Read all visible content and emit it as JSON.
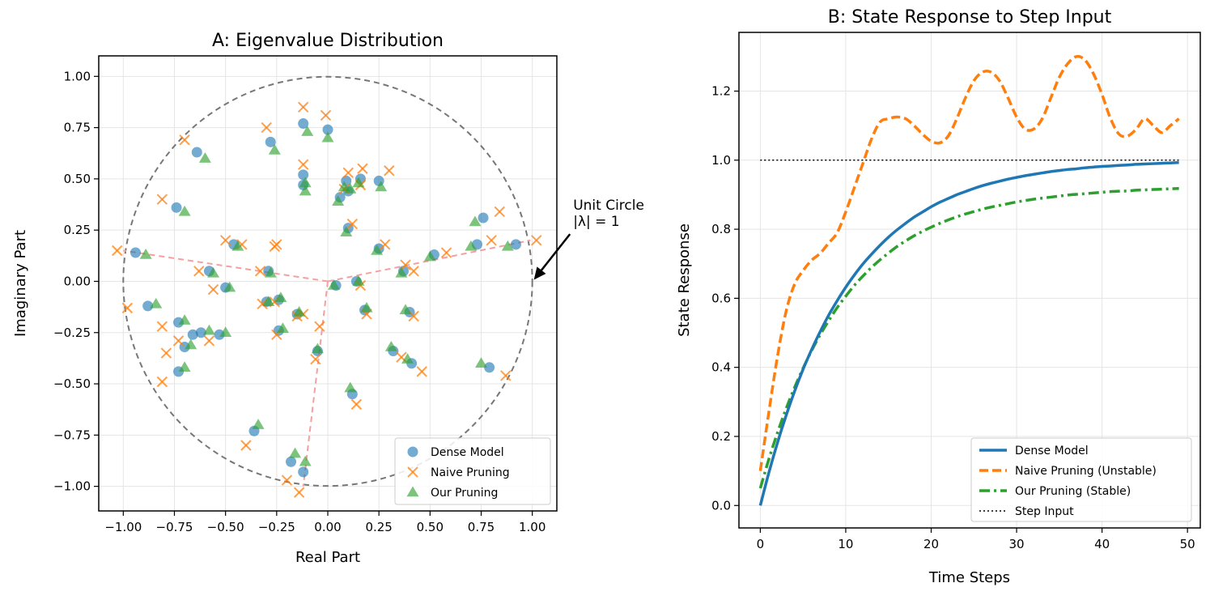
{
  "colors": {
    "dense": "#1f77b4",
    "naive": "#ff7f0e",
    "ours": "#2ca02c",
    "grid": "#e5e5e5",
    "circle": "#777777",
    "spoke": "#f4a0a0"
  },
  "chart_data": [
    {
      "type": "scatter",
      "title": "A: Eigenvalue Distribution",
      "xlabel": "Real Part",
      "ylabel": "Imaginary Part",
      "xlim": [
        -1.12,
        1.12
      ],
      "ylim": [
        -1.12,
        1.1
      ],
      "xticks": [
        -1.0,
        -0.75,
        -0.5,
        -0.25,
        0.0,
        0.25,
        0.5,
        0.75,
        1.0
      ],
      "xtick_labels": [
        "−1.00",
        "−0.75",
        "−0.50",
        "−0.25",
        "0.00",
        "0.25",
        "0.50",
        "0.75",
        "1.00"
      ],
      "yticks": [
        1.0,
        0.75,
        0.5,
        0.25,
        0.0,
        -0.25,
        -0.5,
        -0.75,
        -1.0
      ],
      "ytick_labels": [
        "1.00",
        "0.75",
        "0.50",
        "0.25",
        "0.00",
        "−0.25",
        "−0.50",
        "−0.75",
        "−1.00"
      ],
      "grid": true,
      "legend_position": "lower-right",
      "unit_circle_radius": 1,
      "spokes": [
        [
          -1.0,
          0.15
        ],
        [
          0.99,
          0.2
        ],
        [
          -0.12,
          -1.0
        ]
      ],
      "annotation": {
        "line1": "Unit Circle",
        "line2": "|λ| = 1",
        "target": [
          1.0,
          0.0
        ],
        "text_at": [
          1.2,
          0.27
        ]
      },
      "series": [
        {
          "name": "Dense Model",
          "marker": "circle",
          "points": [
            [
              -0.94,
              0.14
            ],
            [
              -0.74,
              0.36
            ],
            [
              -0.64,
              0.63
            ],
            [
              -0.58,
              0.05
            ],
            [
              -0.5,
              -0.03
            ],
            [
              -0.46,
              0.18
            ],
            [
              -0.29,
              0.05
            ],
            [
              -0.3,
              -0.1
            ],
            [
              -0.24,
              -0.09
            ],
            [
              -0.24,
              -0.24
            ],
            [
              -0.28,
              0.68
            ],
            [
              -0.12,
              0.77
            ],
            [
              -0.12,
              0.52
            ],
            [
              -0.12,
              0.47
            ],
            [
              -0.15,
              -0.16
            ],
            [
              -0.05,
              -0.34
            ],
            [
              0.0,
              0.74
            ],
            [
              0.06,
              0.41
            ],
            [
              0.09,
              0.49
            ],
            [
              0.1,
              0.26
            ],
            [
              0.1,
              0.44
            ],
            [
              0.16,
              0.5
            ],
            [
              0.25,
              0.49
            ],
            [
              0.25,
              0.16
            ],
            [
              0.14,
              0.0
            ],
            [
              0.18,
              -0.14
            ],
            [
              0.04,
              -0.02
            ],
            [
              0.37,
              0.05
            ],
            [
              0.4,
              -0.15
            ],
            [
              0.41,
              -0.4
            ],
            [
              0.52,
              0.13
            ],
            [
              0.32,
              -0.34
            ],
            [
              0.76,
              0.31
            ],
            [
              0.73,
              0.18
            ],
            [
              0.92,
              0.18
            ],
            [
              0.79,
              -0.42
            ],
            [
              -0.88,
              -0.12
            ],
            [
              -0.73,
              -0.2
            ],
            [
              -0.73,
              -0.44
            ],
            [
              -0.7,
              -0.32
            ],
            [
              -0.62,
              -0.25
            ],
            [
              -0.53,
              -0.26
            ],
            [
              -0.66,
              -0.26
            ],
            [
              0.12,
              -0.55
            ],
            [
              -0.36,
              -0.73
            ],
            [
              -0.18,
              -0.88
            ],
            [
              -0.12,
              -0.93
            ]
          ]
        },
        {
          "name": "Naive Pruning",
          "marker": "x",
          "points": [
            [
              -1.03,
              0.15
            ],
            [
              -0.98,
              -0.13
            ],
            [
              -0.81,
              0.4
            ],
            [
              -0.7,
              0.69
            ],
            [
              -0.81,
              -0.22
            ],
            [
              -0.79,
              -0.35
            ],
            [
              -0.81,
              -0.49
            ],
            [
              -0.73,
              -0.29
            ],
            [
              -0.63,
              0.05
            ],
            [
              -0.56,
              -0.04
            ],
            [
              -0.58,
              -0.29
            ],
            [
              -0.5,
              0.2
            ],
            [
              -0.42,
              0.18
            ],
            [
              -0.33,
              0.05
            ],
            [
              -0.32,
              -0.11
            ],
            [
              -0.3,
              0.75
            ],
            [
              -0.25,
              0.18
            ],
            [
              -0.26,
              0.17
            ],
            [
              -0.25,
              -0.26
            ],
            [
              -0.26,
              -0.1
            ],
            [
              -0.15,
              -0.17
            ],
            [
              -0.12,
              -0.16
            ],
            [
              -0.12,
              0.57
            ],
            [
              -0.12,
              0.85
            ],
            [
              -0.04,
              -0.22
            ],
            [
              -0.06,
              -0.38
            ],
            [
              -0.01,
              0.81
            ],
            [
              0.1,
              0.53
            ],
            [
              0.12,
              0.28
            ],
            [
              0.16,
              0.47
            ],
            [
              0.17,
              0.55
            ],
            [
              0.08,
              0.45
            ],
            [
              0.19,
              -0.16
            ],
            [
              0.16,
              -0.02
            ],
            [
              0.28,
              0.18
            ],
            [
              0.3,
              0.54
            ],
            [
              0.38,
              0.08
            ],
            [
              0.42,
              0.05
            ],
            [
              0.42,
              -0.17
            ],
            [
              0.46,
              -0.44
            ],
            [
              0.36,
              -0.37
            ],
            [
              0.58,
              0.14
            ],
            [
              0.8,
              0.2
            ],
            [
              0.84,
              0.34
            ],
            [
              0.87,
              -0.46
            ],
            [
              1.02,
              0.2
            ],
            [
              0.14,
              -0.6
            ],
            [
              -0.4,
              -0.8
            ],
            [
              -0.2,
              -0.97
            ],
            [
              -0.14,
              -1.03
            ]
          ]
        },
        {
          "name": "Our Pruning",
          "marker": "triangle",
          "points": [
            [
              -0.89,
              0.13
            ],
            [
              -0.84,
              -0.11
            ],
            [
              -0.7,
              0.34
            ],
            [
              -0.6,
              0.6
            ],
            [
              -0.56,
              0.04
            ],
            [
              -0.48,
              -0.03
            ],
            [
              -0.44,
              0.17
            ],
            [
              -0.7,
              -0.19
            ],
            [
              -0.7,
              -0.42
            ],
            [
              -0.67,
              -0.31
            ],
            [
              -0.58,
              -0.24
            ],
            [
              -0.5,
              -0.25
            ],
            [
              -0.28,
              0.04
            ],
            [
              -0.29,
              -0.1
            ],
            [
              -0.23,
              -0.08
            ],
            [
              -0.22,
              -0.23
            ],
            [
              -0.26,
              0.64
            ],
            [
              -0.1,
              0.73
            ],
            [
              -0.11,
              0.48
            ],
            [
              -0.11,
              0.44
            ],
            [
              -0.14,
              -0.15
            ],
            [
              -0.05,
              -0.33
            ],
            [
              0.0,
              0.7
            ],
            [
              0.05,
              0.39
            ],
            [
              0.08,
              0.46
            ],
            [
              0.09,
              0.24
            ],
            [
              0.11,
              0.45
            ],
            [
              0.15,
              0.48
            ],
            [
              0.26,
              0.46
            ],
            [
              0.24,
              0.15
            ],
            [
              0.15,
              0.0
            ],
            [
              0.19,
              -0.13
            ],
            [
              0.03,
              -0.02
            ],
            [
              0.36,
              0.04
            ],
            [
              0.38,
              -0.14
            ],
            [
              0.39,
              -0.38
            ],
            [
              0.5,
              0.12
            ],
            [
              0.31,
              -0.32
            ],
            [
              0.72,
              0.29
            ],
            [
              0.7,
              0.17
            ],
            [
              0.88,
              0.17
            ],
            [
              0.75,
              -0.4
            ],
            [
              0.11,
              -0.52
            ],
            [
              -0.34,
              -0.7
            ],
            [
              -0.16,
              -0.84
            ],
            [
              -0.11,
              -0.88
            ]
          ]
        }
      ]
    },
    {
      "type": "line",
      "title": "B: State Response to Step Input",
      "xlabel": "Time Steps",
      "ylabel": "State Response",
      "xlim": [
        -2.5,
        51.5
      ],
      "ylim": [
        -0.065,
        1.37
      ],
      "xticks": [
        0,
        10,
        20,
        30,
        40,
        50
      ],
      "xtick_labels": [
        "0",
        "10",
        "20",
        "30",
        "40",
        "50"
      ],
      "yticks": [
        0.0,
        0.2,
        0.4,
        0.6,
        0.8,
        1.0,
        1.2
      ],
      "ytick_labels": [
        "0.0",
        "0.2",
        "0.4",
        "0.6",
        "0.8",
        "1.0",
        "1.2"
      ],
      "grid": true,
      "legend_position": "lower-right",
      "series": [
        {
          "name": "Dense Model",
          "style": "solid",
          "x": [
            0,
            1,
            2,
            3,
            4,
            5,
            6,
            7,
            8,
            9,
            10,
            11,
            12,
            13,
            14,
            15,
            16,
            17,
            18,
            19,
            20,
            21,
            22,
            23,
            24,
            25,
            26,
            27,
            28,
            29,
            30,
            31,
            32,
            33,
            34,
            35,
            36,
            37,
            38,
            39,
            40,
            41,
            42,
            43,
            44,
            45,
            46,
            47,
            48,
            49
          ],
          "y": [
            0.0,
            0.095,
            0.181,
            0.259,
            0.33,
            0.394,
            0.451,
            0.503,
            0.551,
            0.593,
            0.632,
            0.667,
            0.699,
            0.727,
            0.753,
            0.777,
            0.798,
            0.817,
            0.835,
            0.85,
            0.865,
            0.878,
            0.889,
            0.9,
            0.909,
            0.918,
            0.926,
            0.933,
            0.939,
            0.945,
            0.95,
            0.955,
            0.959,
            0.963,
            0.967,
            0.97,
            0.973,
            0.975,
            0.978,
            0.98,
            0.982,
            0.983,
            0.985,
            0.986,
            0.988,
            0.989,
            0.99,
            0.991,
            0.992,
            0.993
          ]
        },
        {
          "name": "Naive Pruning (Unstable)",
          "style": "dashed",
          "x": [
            0,
            1,
            2,
            3,
            4,
            5,
            6,
            7,
            8,
            9,
            10,
            11,
            12,
            13,
            14,
            15,
            16,
            17,
            18,
            19,
            20,
            21,
            22,
            23,
            24,
            25,
            26,
            27,
            28,
            29,
            30,
            31,
            32,
            33,
            34,
            35,
            36,
            37,
            38,
            39,
            40,
            41,
            42,
            43,
            44,
            45,
            46,
            47,
            48,
            49
          ],
          "y": [
            0.1,
            0.27,
            0.43,
            0.56,
            0.64,
            0.68,
            0.71,
            0.73,
            0.76,
            0.79,
            0.85,
            0.92,
            0.99,
            1.06,
            1.11,
            1.12,
            1.125,
            1.12,
            1.1,
            1.075,
            1.055,
            1.05,
            1.07,
            1.12,
            1.18,
            1.23,
            1.255,
            1.255,
            1.23,
            1.18,
            1.125,
            1.09,
            1.09,
            1.12,
            1.18,
            1.24,
            1.28,
            1.3,
            1.29,
            1.25,
            1.19,
            1.12,
            1.075,
            1.07,
            1.09,
            1.12,
            1.1,
            1.08,
            1.1,
            1.12
          ]
        },
        {
          "name": "Our Pruning (Stable)",
          "style": "dashdot",
          "x": [
            0,
            1,
            2,
            3,
            4,
            5,
            6,
            7,
            8,
            9,
            10,
            11,
            12,
            13,
            14,
            15,
            16,
            17,
            18,
            19,
            20,
            21,
            22,
            23,
            24,
            25,
            26,
            27,
            28,
            29,
            30,
            31,
            32,
            33,
            34,
            35,
            36,
            37,
            38,
            39,
            40,
            41,
            42,
            43,
            44,
            45,
            46,
            47,
            48,
            49
          ],
          "y": [
            0.05,
            0.134,
            0.21,
            0.279,
            0.341,
            0.397,
            0.448,
            0.494,
            0.535,
            0.573,
            0.606,
            0.637,
            0.664,
            0.689,
            0.711,
            0.731,
            0.75,
            0.766,
            0.781,
            0.794,
            0.806,
            0.817,
            0.827,
            0.836,
            0.844,
            0.851,
            0.858,
            0.864,
            0.869,
            0.874,
            0.879,
            0.883,
            0.887,
            0.89,
            0.893,
            0.896,
            0.899,
            0.901,
            0.903,
            0.905,
            0.907,
            0.909,
            0.91,
            0.911,
            0.913,
            0.914,
            0.915,
            0.916,
            0.917,
            0.918
          ]
        },
        {
          "name": "Step Input",
          "style": "dotted",
          "x": [
            0,
            49
          ],
          "y": [
            1.0,
            1.0
          ]
        }
      ]
    }
  ]
}
